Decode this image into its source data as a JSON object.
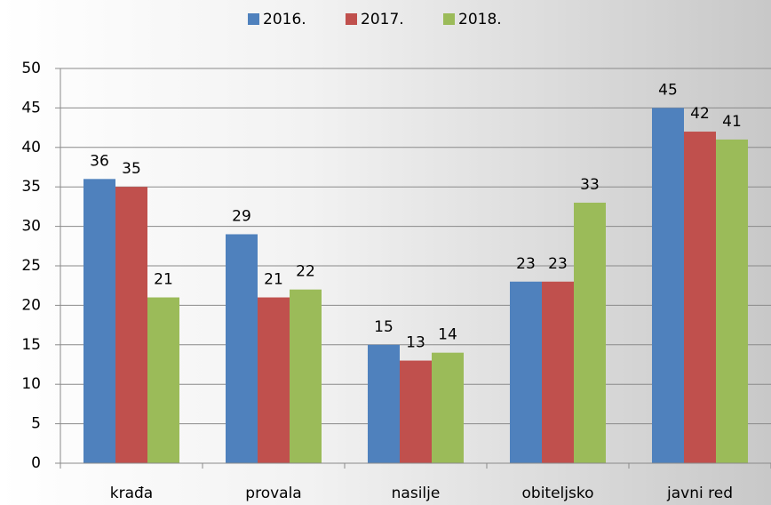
{
  "chart_data": {
    "type": "bar",
    "categories": [
      "krađa",
      "provala",
      "nasilje",
      "obiteljsko",
      "javni red"
    ],
    "series": [
      {
        "name": "2016.",
        "color": "#4f81bd",
        "values": [
          36,
          29,
          15,
          23,
          45
        ]
      },
      {
        "name": "2017.",
        "color": "#c0504d",
        "values": [
          35,
          21,
          13,
          23,
          42
        ]
      },
      {
        "name": "2018.",
        "color": "#9bbb59",
        "values": [
          21,
          22,
          14,
          33,
          41
        ]
      }
    ],
    "ylim": [
      0,
      50
    ],
    "yticks": [
      0,
      5,
      10,
      15,
      20,
      25,
      30,
      35,
      40,
      45,
      50
    ],
    "grid": true,
    "legend": "top"
  }
}
